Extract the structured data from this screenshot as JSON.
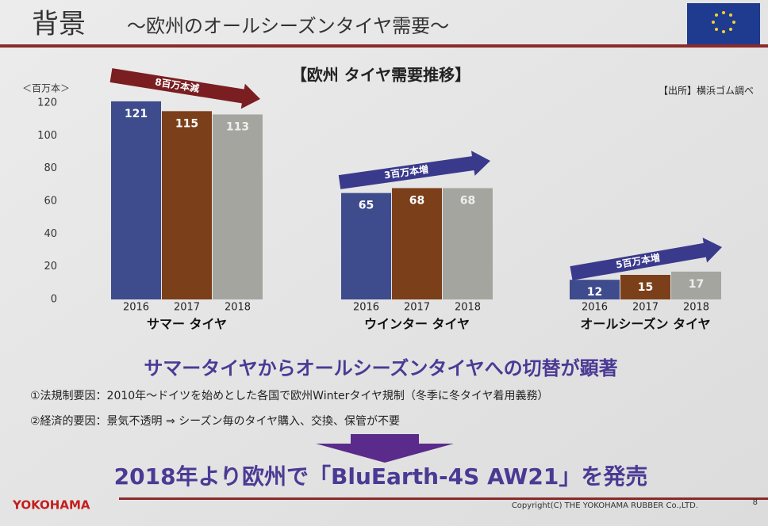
{
  "header": {
    "title": "背景",
    "subtitle": "～欧州のオールシーズンタイヤ需要～"
  },
  "chart_data": {
    "type": "bar",
    "title": "【欧州 タイヤ需要推移】",
    "y_label": "＜百万本＞",
    "source": "【出所】横浜ゴム調べ",
    "ylim": [
      0,
      120
    ],
    "yticks": [
      0,
      20,
      40,
      60,
      80,
      100,
      120
    ],
    "colors": [
      "#3e4b8c",
      "#7b3f1a",
      "#a5a5a0"
    ],
    "groups": [
      {
        "name": "サマー タイヤ",
        "categories": [
          "2016",
          "2017",
          "2018"
        ],
        "values": [
          121,
          115,
          113
        ],
        "annotation": "8百万本減",
        "annotation_color": "#7a1e22"
      },
      {
        "name": "ウインター タイヤ",
        "categories": [
          "2016",
          "2017",
          "2018"
        ],
        "values": [
          65,
          68,
          68
        ],
        "annotation": "3百万本増",
        "annotation_color": "#3a3a8c"
      },
      {
        "name": "オールシーズン タイヤ",
        "categories": [
          "2016",
          "2017",
          "2018"
        ],
        "values": [
          12,
          15,
          17
        ],
        "annotation": "5百万本増",
        "annotation_color": "#3a3a8c"
      }
    ]
  },
  "summary": {
    "headline": "サマータイヤからオールシーズンタイヤへの切替が顕著",
    "points": [
      "①法規制要因：2010年～ドイツを始めとした各国で欧州Winterタイヤ規制（冬季に冬タイヤ着用義務）",
      "②経済的要因：景気不透明 ⇒ シーズン毎のタイヤ購入、交換、保管が不要"
    ],
    "conclusion": "2018年より欧州で「BluEarth-4S AW21」を発売"
  },
  "footer": {
    "logo": "YOKOHAMA",
    "copyright": "Copyright(C) THE YOKOHAMA RUBBER Co.,LTD.",
    "page": "8"
  }
}
